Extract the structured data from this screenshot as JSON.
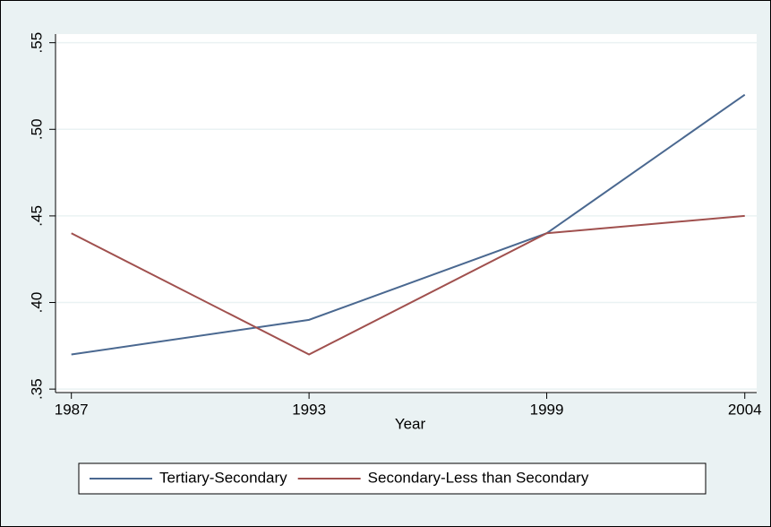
{
  "chart_data": {
    "type": "line",
    "x_label": "Year",
    "x": [
      1987,
      1993,
      1999,
      2004
    ],
    "series": [
      {
        "name": "Tertiary-Secondary",
        "color": "#4a6890",
        "values": [
          0.37,
          0.39,
          0.44,
          0.52
        ]
      },
      {
        "name": "Secondary-Less than Secondary",
        "color": "#a0504e",
        "values": [
          0.44,
          0.37,
          0.44,
          0.45
        ]
      }
    ],
    "xlim": [
      1986.6,
      2004.3
    ],
    "xticks": [
      1987,
      1993,
      1999,
      2004
    ],
    "ylim": [
      0.348,
      0.555
    ],
    "yticks": [
      {
        "value": 0.35,
        "label": ".35"
      },
      {
        "value": 0.4,
        "label": ".40"
      },
      {
        "value": 0.45,
        "label": ".45"
      },
      {
        "value": 0.5,
        "label": ".50"
      },
      {
        "value": 0.55,
        "label": ".55"
      }
    ],
    "grid": true,
    "legend": "bottom"
  }
}
